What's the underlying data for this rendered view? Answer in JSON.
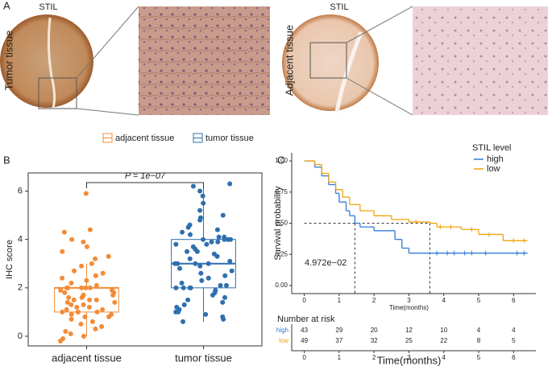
{
  "figure_a": {
    "panel_label": "A",
    "images": [
      {
        "title": "STIL",
        "label": "Tumor tissue"
      },
      {
        "title": "STIL",
        "label": "Adjacent tissue"
      }
    ]
  },
  "chart_data": [
    {
      "type": "box",
      "panel_label": "B",
      "ylabel": "IHC score",
      "ylim": [
        -0.4,
        6.75
      ],
      "yticks": [
        0,
        2,
        4,
        6
      ],
      "categories": [
        "adjacent tissue",
        "tumor tissue"
      ],
      "annotation": "P = 1e−07",
      "series": [
        {
          "name": "adjacent tissue",
          "color": "#f28c38",
          "box": {
            "q1": 1,
            "median": 2,
            "q3": 2,
            "whisker_low": 0,
            "whisker_high": 3
          },
          "values": [
            5.9,
            4.4,
            4.3,
            4.0,
            3.9,
            3.7,
            3.5,
            3.3,
            3.0,
            2.9,
            2.7,
            2.6,
            2.5,
            2.4,
            2.3,
            2.2,
            2.1,
            2.0,
            2.0,
            2.0,
            2.0,
            1.9,
            1.9,
            1.8,
            1.8,
            1.7,
            1.7,
            1.6,
            1.6,
            1.5,
            1.5,
            1.5,
            1.4,
            1.4,
            1.3,
            1.3,
            1.2,
            1.2,
            1.1,
            1.1,
            1.0,
            1.0,
            1.0,
            0.9,
            0.9,
            0.8,
            0.8,
            0.7,
            0.6,
            0.5,
            0.4,
            0.3,
            0.2,
            0.1,
            0.0,
            -0.1,
            -0.2,
            2.0,
            1.0,
            3.2
          ]
        },
        {
          "name": "tumor tissue",
          "color": "#2f6fae",
          "box": {
            "q1": 2,
            "median": 3,
            "q3": 4,
            "whisker_low": 0.6,
            "whisker_high": 6.3
          },
          "values": [
            6.3,
            6.2,
            6.0,
            5.5,
            5.2,
            5.0,
            4.9,
            4.8,
            4.6,
            4.5,
            4.4,
            4.3,
            4.2,
            4.1,
            4.1,
            4.0,
            4.0,
            4.0,
            3.9,
            3.9,
            3.8,
            3.8,
            3.7,
            3.6,
            3.5,
            3.5,
            3.4,
            3.3,
            3.2,
            3.1,
            3.0,
            3.0,
            3.0,
            2.9,
            2.8,
            2.7,
            2.6,
            2.5,
            2.4,
            2.3,
            2.2,
            2.1,
            2.1,
            2.0,
            2.0,
            2.0,
            1.9,
            1.8,
            1.7,
            1.6,
            1.5,
            1.4,
            1.3,
            1.2,
            1.1,
            1.0,
            0.9,
            0.8,
            0.7,
            0.6,
            4.0,
            3.0,
            2.0,
            5.8,
            1.0
          ]
        }
      ]
    },
    {
      "type": "survival",
      "panel_label": "C",
      "xlabel": "Time(months)",
      "ylabel": "Survival probability",
      "xlim": [
        -0.36,
        6.64
      ],
      "ylim": [
        -0.065,
        1.065
      ],
      "xticks": [
        0,
        1,
        2,
        3,
        4,
        5,
        6
      ],
      "yticks": [
        {
          "value": 0,
          "label": "0.00"
        },
        {
          "value": 0.25,
          "label": "0.25"
        },
        {
          "value": 0.5,
          "label": "0.50"
        },
        {
          "value": 0.75,
          "label": "0.75"
        },
        {
          "value": 1,
          "label": "1.00"
        }
      ],
      "legend_title": "STIL level",
      "annotation": "4.972e−02",
      "median_level": 0.5,
      "series": [
        {
          "name": "high",
          "color": "#2f7bd9",
          "median_x": 1.45,
          "x": [
            0,
            0.2,
            0.3,
            0.5,
            0.7,
            0.9,
            1.0,
            1.2,
            1.3,
            1.45,
            1.6,
            2.0,
            2.6,
            2.8,
            3.0,
            6.4
          ],
          "y": [
            1,
            1,
            0.95,
            0.88,
            0.81,
            0.74,
            0.67,
            0.6,
            0.56,
            0.5,
            0.47,
            0.44,
            0.37,
            0.3,
            0.26,
            0.26
          ],
          "censor_x": [
            3.8,
            4.1,
            4.3,
            4.6,
            4.8,
            5.2,
            6.1,
            6.3
          ],
          "at_risk": [
            43,
            29,
            20,
            12,
            10,
            4,
            4
          ]
        },
        {
          "name": "low",
          "color": "#f0a30a",
          "median_x": 3.6,
          "x": [
            0,
            0.3,
            0.5,
            0.7,
            0.9,
            1.1,
            1.3,
            1.6,
            2.0,
            2.5,
            3.0,
            3.6,
            3.8,
            4.5,
            5.0,
            5.7,
            6.4
          ],
          "y": [
            1,
            0.97,
            0.9,
            0.83,
            0.77,
            0.71,
            0.65,
            0.6,
            0.56,
            0.53,
            0.51,
            0.5,
            0.47,
            0.45,
            0.41,
            0.36,
            0.36
          ],
          "censor_x": [
            3.2,
            3.9,
            4.2,
            4.8,
            5.3,
            6.0,
            6.3
          ],
          "at_risk": [
            49,
            37,
            32,
            25,
            22,
            8,
            5
          ]
        }
      ],
      "risk_table": {
        "title": "Number at risk",
        "xlabel": "Time(months)"
      }
    }
  ]
}
